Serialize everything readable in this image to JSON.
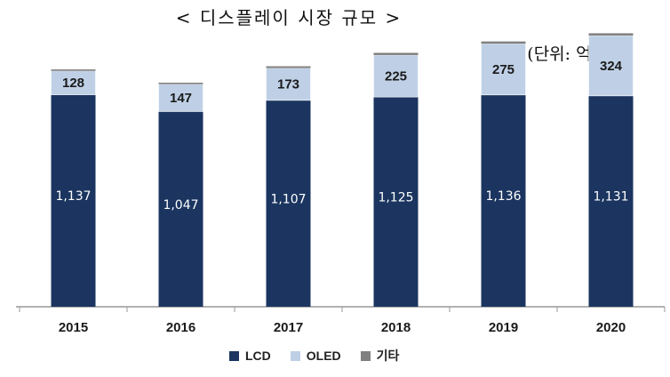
{
  "title": "< 디스플레이 시장 규모 >",
  "unit": "(단위: 억 달러)",
  "colors": {
    "LCD": "#1b3560",
    "OLED": "#bfd0e6",
    "기타": "#808080"
  },
  "chart_data": {
    "type": "bar",
    "stacked": true,
    "categories": [
      "2015",
      "2016",
      "2017",
      "2018",
      "2019",
      "2020"
    ],
    "series": [
      {
        "name": "LCD",
        "values": [
          1137,
          1047,
          1107,
          1125,
          1136,
          1131
        ],
        "labels": [
          "1,137",
          "1,047",
          "1,107",
          "1,125",
          "1,136",
          "1,131"
        ]
      },
      {
        "name": "OLED",
        "values": [
          128,
          147,
          173,
          225,
          275,
          324
        ],
        "labels": [
          "128",
          "147",
          "173",
          "225",
          "275",
          "324"
        ]
      },
      {
        "name": "기타",
        "values": [
          8,
          8,
          10,
          12,
          12,
          12
        ]
      }
    ],
    "ylim": [
      0,
      1550
    ],
    "legend_position": "bottom",
    "grid": false
  }
}
